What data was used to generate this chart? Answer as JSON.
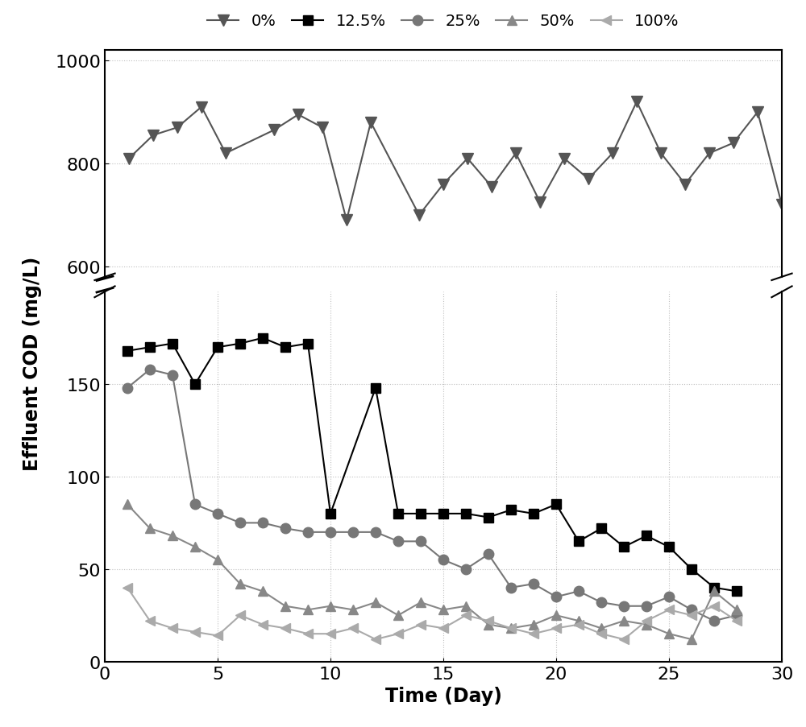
{
  "series": {
    "0%": {
      "x": [
        1,
        2,
        3,
        4,
        5,
        7,
        8,
        9,
        10,
        11,
        13,
        14,
        15,
        16,
        17,
        18,
        19,
        20,
        21,
        22,
        23,
        24,
        25,
        26,
        27,
        28
      ],
      "y": [
        810,
        855,
        870,
        910,
        820,
        865,
        895,
        870,
        690,
        880,
        700,
        760,
        810,
        755,
        820,
        725,
        810,
        770,
        820,
        920,
        820,
        760,
        820,
        840,
        900,
        720
      ],
      "color": "#555555",
      "marker": "v",
      "markersize": 10,
      "linewidth": 1.5
    },
    "12.5%": {
      "x": [
        1,
        2,
        3,
        4,
        5,
        6,
        7,
        8,
        9,
        10,
        12,
        13,
        14,
        15,
        16,
        17,
        18,
        19,
        20,
        21,
        22,
        23,
        24,
        25,
        26,
        27,
        28
      ],
      "y": [
        168,
        170,
        172,
        150,
        170,
        172,
        175,
        170,
        172,
        80,
        148,
        80,
        80,
        80,
        80,
        78,
        82,
        80,
        85,
        65,
        72,
        62,
        68,
        62,
        50,
        40,
        38
      ],
      "color": "#000000",
      "marker": "s",
      "markersize": 9,
      "linewidth": 1.5
    },
    "25%": {
      "x": [
        1,
        2,
        3,
        4,
        5,
        6,
        7,
        8,
        9,
        10,
        11,
        12,
        13,
        14,
        15,
        16,
        17,
        18,
        19,
        20,
        21,
        22,
        23,
        24,
        25,
        26,
        27,
        28
      ],
      "y": [
        148,
        158,
        155,
        85,
        80,
        75,
        75,
        72,
        70,
        70,
        70,
        70,
        65,
        65,
        55,
        50,
        58,
        40,
        42,
        35,
        38,
        32,
        30,
        30,
        35,
        28,
        22,
        25
      ],
      "color": "#777777",
      "marker": "o",
      "markersize": 9,
      "linewidth": 1.5
    },
    "50%": {
      "x": [
        1,
        2,
        3,
        4,
        5,
        6,
        7,
        8,
        9,
        10,
        11,
        12,
        13,
        14,
        15,
        16,
        17,
        18,
        19,
        20,
        21,
        22,
        23,
        24,
        25,
        26,
        27,
        28
      ],
      "y": [
        85,
        72,
        68,
        62,
        55,
        42,
        38,
        30,
        28,
        30,
        28,
        32,
        25,
        32,
        28,
        30,
        20,
        18,
        20,
        25,
        22,
        18,
        22,
        20,
        15,
        12,
        38,
        28
      ],
      "color": "#888888",
      "marker": "^",
      "markersize": 9,
      "linewidth": 1.5
    },
    "100%": {
      "x": [
        1,
        2,
        3,
        4,
        5,
        6,
        7,
        8,
        9,
        10,
        11,
        12,
        13,
        14,
        15,
        16,
        17,
        18,
        19,
        20,
        21,
        22,
        23,
        24,
        25,
        26,
        27,
        28
      ],
      "y": [
        40,
        22,
        18,
        16,
        14,
        25,
        20,
        18,
        15,
        15,
        18,
        12,
        15,
        20,
        18,
        25,
        22,
        18,
        15,
        18,
        20,
        15,
        12,
        22,
        28,
        25,
        30,
        22
      ],
      "color": "#aaaaaa",
      "marker": "<",
      "markersize": 9,
      "linewidth": 1.5
    }
  },
  "xlabel": "Time (Day)",
  "ylabel": "Effluent COD (mg/L)",
  "xlim": [
    0,
    28
  ],
  "xticks": [
    0,
    5,
    10,
    15,
    20,
    25,
    30
  ],
  "yticks_lower": [
    0,
    50,
    100,
    150
  ],
  "yticks_upper": [
    600,
    800,
    1000
  ],
  "lower_ylim": [
    0,
    200
  ],
  "upper_ylim": [
    580,
    1020
  ],
  "break_lower": 195,
  "break_upper": 590,
  "fig_width": 10.0,
  "fig_height": 9.04,
  "background_color": "#ffffff",
  "legend_labels": [
    "0%",
    "12.5%",
    "25%",
    "50%",
    "100%"
  ],
  "legend_markers": [
    "v",
    "s",
    "o",
    "^",
    "<"
  ],
  "legend_colors": [
    "#555555",
    "#000000",
    "#777777",
    "#888888",
    "#aaaaaa"
  ]
}
